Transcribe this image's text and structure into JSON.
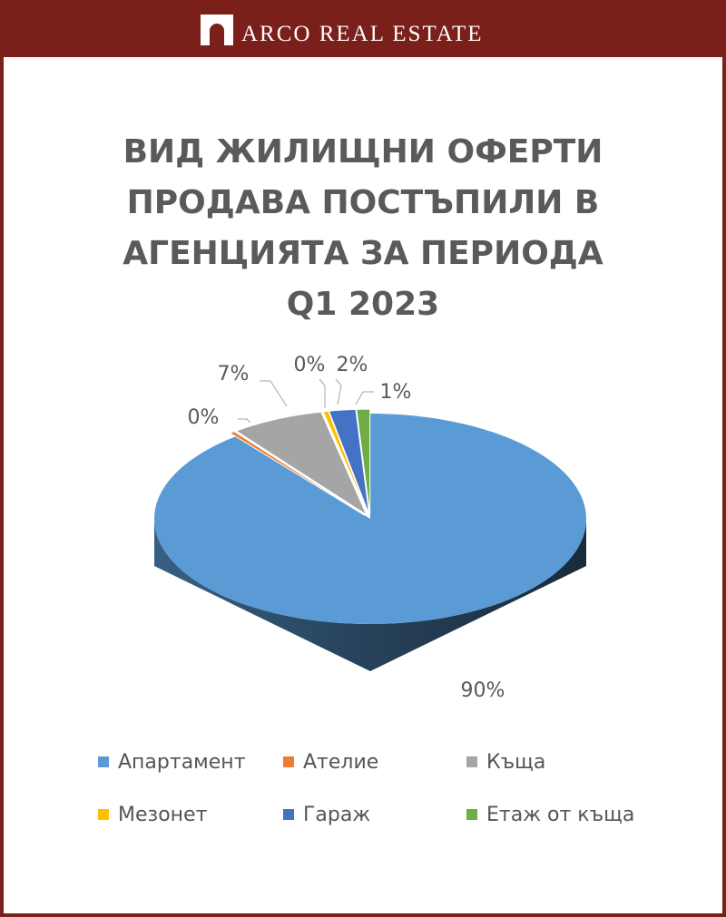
{
  "header": {
    "brand": "ARCO REAL ESTATE",
    "logo_icon": "arch-logo-icon",
    "background_color": "#7a1f1a"
  },
  "chart_data": {
    "type": "pie",
    "title_lines": [
      "ВИД ЖИЛИЩНИ ОФЕРТИ",
      "ПРОДАВА ПОСТЪПИЛИ В",
      "АГЕНЦИЯТА ЗА ПЕРИОДА",
      "Q1 2023"
    ],
    "title": "ВИД ЖИЛИЩНИ ОФЕРТИ ПРОДАВА ПОСТЪПИЛИ В АГЕНЦИЯТА ЗА ПЕРИОДА Q1 2023",
    "style": "3d-exploded",
    "legend_position": "bottom",
    "categories": [
      "Апартамент",
      "Ателие",
      "Къща",
      "Мезонет",
      "Гараж",
      "Етаж от къща"
    ],
    "values": [
      90,
      0.4,
      7,
      0.4,
      2,
      1
    ],
    "data_labels": [
      "90%",
      "0%",
      "7%",
      "0%",
      "2%",
      "1%"
    ],
    "colors": [
      "#5b9bd5",
      "#ed7d31",
      "#a5a5a5",
      "#ffc000",
      "#4472c4",
      "#70ad47"
    ]
  }
}
